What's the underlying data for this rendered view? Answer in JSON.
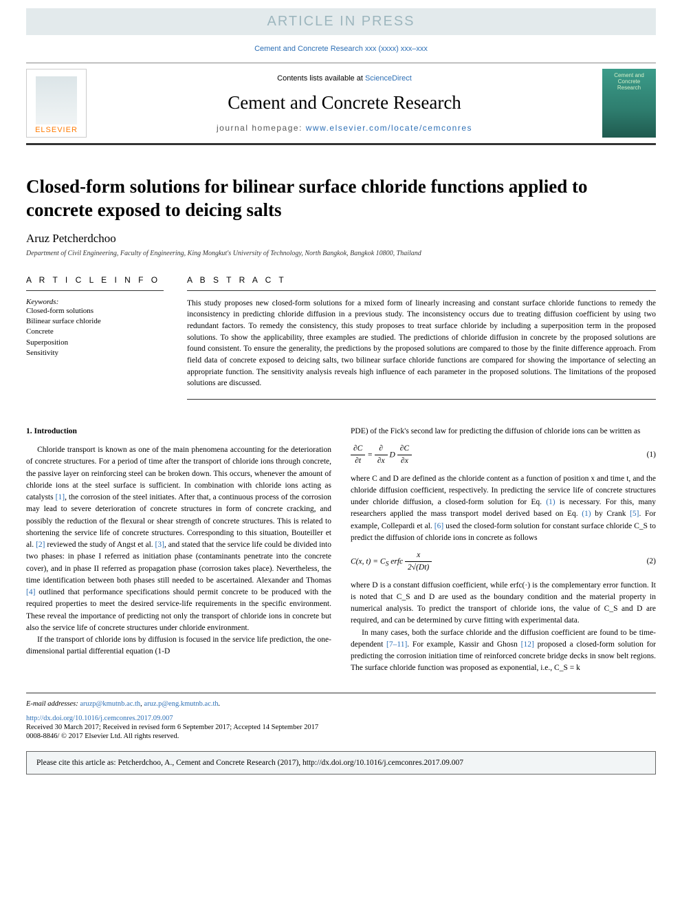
{
  "banner": {
    "text": "ARTICLE IN PRESS"
  },
  "topcite": "Cement and Concrete Research xxx (xxxx) xxx–xxx",
  "header": {
    "contents_prefix": "Contents lists available at ",
    "contents_link": "ScienceDirect",
    "journal": "Cement and Concrete Research",
    "homepage_prefix": "journal homepage: ",
    "homepage_link": "www.elsevier.com/locate/cemconres",
    "elsevier": "ELSEVIER",
    "cover_title": "Cement and Concrete Research"
  },
  "title": "Closed-form solutions for bilinear surface chloride functions applied to concrete exposed to deicing salts",
  "author": "Aruz Petcherdchoo",
  "affiliation": "Department of Civil Engineering, Faculty of Engineering, King Mongkut's University of Technology, North Bangkok, Bangkok 10800, Thailand",
  "articleinfo": {
    "heading": "A R T I C L E   I N F O",
    "keywords_label": "Keywords:",
    "keywords": [
      "Closed-form solutions",
      "Bilinear surface chloride",
      "Concrete",
      "Superposition",
      "Sensitivity"
    ]
  },
  "abstract": {
    "heading": "A B S T R A C T",
    "text": "This study proposes new closed-form solutions for a mixed form of linearly increasing and constant surface chloride functions to remedy the inconsistency in predicting chloride diffusion in a previous study. The inconsistency occurs due to treating diffusion coefficient by using two redundant factors. To remedy the consistency, this study proposes to treat surface chloride by including a superposition term in the proposed solutions. To show the applicability, three examples are studied. The predictions of chloride diffusion in concrete by the proposed solutions are found consistent. To ensure the generality, the predictions by the proposed solutions are compared to those by the finite difference approach. From field data of concrete exposed to deicing salts, two bilinear surface chloride functions are compared for showing the importance of selecting an appropriate function. The sensitivity analysis reveals high influence of each parameter in the proposed solutions. The limitations of the proposed solutions are discussed."
  },
  "body": {
    "intro_heading": "1. Introduction",
    "left_para1": "Chloride transport is known as one of the main phenomena accounting for the deterioration of concrete structures. For a period of time after the transport of chloride ions through concrete, the passive layer on reinforcing steel can be broken down. This occurs, whenever the amount of chloride ions at the steel surface is sufficient. In combination with chloride ions acting as catalysts ",
    "ref1": "[1]",
    "left_para1b": ", the corrosion of the steel initiates. After that, a continuous process of the corrosion may lead to severe deterioration of concrete structures in form of concrete cracking, and possibly the reduction of the flexural or shear strength of concrete structures. This is related to shortening the service life of concrete structures. Corresponding to this situation, Bouteiller et al. ",
    "ref2": "[2]",
    "left_para1c": " reviewed the study of Angst et al. ",
    "ref3": "[3]",
    "left_para1d": ", and stated that the service life could be divided into two phases: in phase I referred as initiation phase (contaminants penetrate into the concrete cover), and in phase II referred as propagation phase (corrosion takes place). Nevertheless, the time identification between both phases still needed to be ascertained. Alexander and Thomas ",
    "ref4": "[4]",
    "left_para1e": " outlined that performance specifications should permit concrete to be produced with the required properties to meet the desired service-life requirements in the specific environment. These reveal the importance of predicting not only the transport of chloride ions in concrete but also the service life of concrete structures under chloride environment.",
    "left_para2": "If the transport of chloride ions by diffusion is focused in the service life prediction, the one-dimensional partial differential equation (1-D",
    "right_para1": "PDE) of the Fick's second law for predicting the diffusion of chloride ions can be written as",
    "eq1_num": "(1)",
    "right_para2a": "where C and D are defined as the chloride content as a function of position x and time t, and the chloride diffusion coefficient, respectively. In predicting the service life of concrete structures under chloride diffusion, a closed-form solution for Eq. ",
    "ref_eq1a": "(1)",
    "right_para2b": " is necessary. For this, many researchers applied the mass transport model derived based on Eq. ",
    "ref_eq1b": "(1)",
    "right_para2c": " by Crank ",
    "ref5": "[5]",
    "right_para2d": ". For example, Collepardi et al. ",
    "ref6": "[6]",
    "right_para2e": " used the closed-form solution for constant surface chloride C_S to predict the diffusion of chloride ions in concrete as follows",
    "eq2_num": "(2)",
    "right_para3a": "where D is a constant diffusion coefficient, while erfc(·) is the complementary error function. It is noted that C_S and D are used as the boundary condition and the material property in numerical analysis. To predict the transport of chloride ions, the value of C_S and D are required, and can be determined by curve fitting with experimental data.",
    "right_para4a": "In many cases, both the surface chloride and the diffusion coefficient are found to be time-dependent ",
    "ref7_11": "[7–11]",
    "right_para4b": ". For example, Kassir and Ghosn ",
    "ref12": "[12]",
    "right_para4c": " proposed a closed-form solution for predicting the corrosion initiation time of reinforced concrete bridge decks in snow belt regions. The surface chloride function was proposed as exponential, i.e., C_S = k"
  },
  "footer": {
    "email_label": "E-mail addresses: ",
    "email1": "aruzp@kmutnb.ac.th",
    "email2": "aruz.p@eng.kmutnb.ac.th",
    "doi": "http://dx.doi.org/10.1016/j.cemconres.2017.09.007",
    "received": "Received 30 March 2017; Received in revised form 6 September 2017; Accepted 14 September 2017",
    "copyright": "0008-8846/ © 2017 Elsevier Ltd. All rights reserved.",
    "citebox": "Please cite this article as: Petcherdchoo, A., Cement and Concrete Research (2017), http://dx.doi.org/10.1016/j.cemconres.2017.09.007"
  },
  "colors": {
    "banner_bg": "#e3eaec",
    "banner_fg": "#9db6be",
    "link": "#2d6fb5",
    "elsevier_orange": "#ff7a00",
    "cover_bg_top": "#3b9c8a",
    "cover_bg_bot": "#1f5a4f",
    "cite_bg": "#f2f5f6",
    "rule": "#333333"
  },
  "typography": {
    "title_size_pt": 20,
    "journal_size_pt": 20,
    "body_size_pt": 8.5,
    "abstract_size_pt": 8.5
  }
}
